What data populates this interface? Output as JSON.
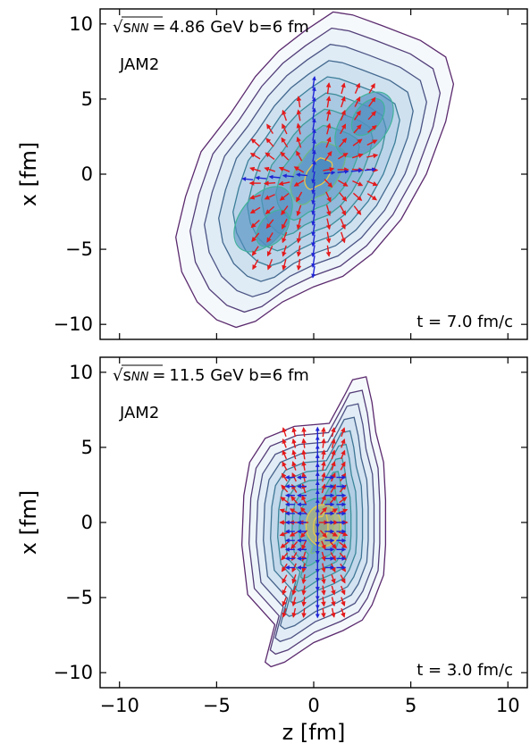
{
  "chart_data": [
    {
      "type": "contour",
      "model": "JAM2",
      "energy_label": "4.86 GeV b=6 fm",
      "time_label": "t = 7.0 fm/c",
      "ylabel": "x [fm]",
      "xlabel": "",
      "xlim": [
        -11,
        11
      ],
      "ylim": [
        -11,
        11
      ],
      "xticks": [
        -10,
        -5,
        0,
        5,
        10
      ],
      "yticks": [
        -10,
        -5,
        0,
        5,
        10
      ],
      "xtick_labels_shown": false,
      "density_field": {
        "description": "elongated diagonal blob with two lobes",
        "components": [
          {
            "center": [
              -2.0,
              -3.5
            ],
            "sigma_major": 3.1,
            "sigma_minor": 2.3,
            "angle_deg": 52,
            "weight": 1.0
          },
          {
            "center": [
              2.5,
              3.5
            ],
            "sigma_major": 3.1,
            "sigma_minor": 2.3,
            "angle_deg": 52,
            "weight": 1.0
          },
          {
            "center": [
              0.3,
              0.0
            ],
            "sigma_major": 3.6,
            "sigma_minor": 2.3,
            "angle_deg": 55,
            "weight": 0.85
          }
        ]
      },
      "outer_contour": [
        [
          -6.8,
          -6.5
        ],
        [
          -6.0,
          -8.5
        ],
        [
          -5.0,
          -9.7
        ],
        [
          -4.0,
          -10.2
        ],
        [
          -3.0,
          -9.8
        ],
        [
          -1.6,
          -8.5
        ],
        [
          0.0,
          -7.5
        ],
        [
          1.5,
          -6.8
        ],
        [
          3.0,
          -5.3
        ],
        [
          4.5,
          -3.0
        ],
        [
          5.8,
          0.0
        ],
        [
          6.8,
          3.5
        ],
        [
          7.2,
          6.0
        ],
        [
          6.8,
          7.8
        ],
        [
          5.5,
          8.9
        ],
        [
          3.5,
          9.9
        ],
        [
          2.0,
          10.6
        ],
        [
          1.0,
          10.8
        ],
        [
          -0.5,
          9.5
        ],
        [
          -1.8,
          8.2
        ],
        [
          -3.0,
          6.5
        ],
        [
          -4.3,
          4.0
        ],
        [
          -5.8,
          1.5
        ],
        [
          -6.6,
          -1.5
        ],
        [
          -7.1,
          -4.2
        ]
      ],
      "contour_levels": 10,
      "arrows": [
        {
          "x": -3.0,
          "y": -3.2,
          "u": -1,
          "v": 0,
          "color": "blue"
        }
      ]
    },
    {
      "type": "contour",
      "model": "JAM2",
      "energy_label": "11.5 GeV b=6 fm",
      "time_label": "t = 3.0 fm/c",
      "ylabel": "x [fm]",
      "xlabel": "z [fm]",
      "xlim": [
        -11,
        11
      ],
      "ylim": [
        -11,
        11
      ],
      "xticks": [
        -10,
        -5,
        0,
        5,
        10
      ],
      "yticks": [
        -10,
        -5,
        0,
        5,
        10
      ],
      "xtick_labels_shown": true,
      "density_field": {
        "description": "narrow vertically elongated blob",
        "components": [
          {
            "center": [
              0.4,
              -0.3
            ],
            "sigma_major": 3.5,
            "sigma_minor": 1.5,
            "angle_deg": 92,
            "weight": 1.0
          }
        ]
      },
      "outer_contour": [
        [
          -2.5,
          -9.3
        ],
        [
          -2.0,
          -6.8
        ],
        [
          -3.4,
          -4.8
        ],
        [
          -3.7,
          -1.5
        ],
        [
          -3.6,
          1.8
        ],
        [
          -3.3,
          4.0
        ],
        [
          -2.5,
          5.6
        ],
        [
          -1.0,
          6.4
        ],
        [
          0.8,
          6.6
        ],
        [
          1.6,
          8.5
        ],
        [
          2.0,
          9.5
        ],
        [
          2.7,
          9.7
        ],
        [
          3.0,
          8.0
        ],
        [
          3.2,
          6.0
        ],
        [
          3.6,
          4.0
        ],
        [
          3.7,
          1.5
        ],
        [
          3.7,
          -1.5
        ],
        [
          3.6,
          -3.5
        ],
        [
          3.0,
          -5.5
        ],
        [
          2.5,
          -6.5
        ],
        [
          1.5,
          -7.2
        ],
        [
          0.0,
          -8.0
        ],
        [
          -1.5,
          -9.3
        ],
        [
          -2.2,
          -9.6
        ]
      ],
      "contour_levels": 11
    }
  ],
  "colors": {
    "outer": "#5b2a6e",
    "mid": "#3b7f9a",
    "inner": "#41b39a",
    "core": "#e9c64b",
    "fill_low": "#eef4fa",
    "fill_high": "#4a8bbf",
    "arrow_red": "#e41a1c",
    "arrow_blue": "#1f25d6"
  },
  "math_symbol": "√s",
  "math_subscript": "NN",
  "equals": "="
}
